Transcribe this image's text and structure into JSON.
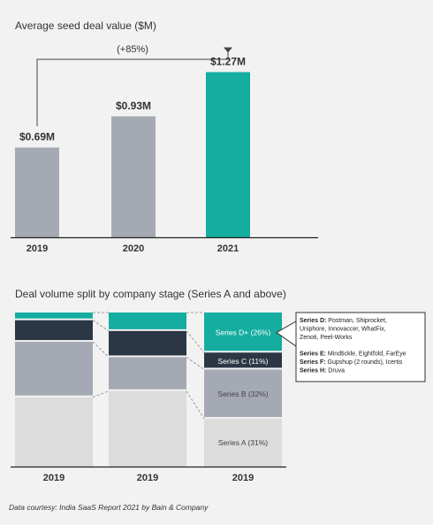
{
  "colors": {
    "bar_gray": "#a5a9b4",
    "bar_teal": "#14ada0",
    "series_a": "#dcdcdc",
    "series_b": "#a5a9b4",
    "series_c": "#2b3744",
    "series_d": "#14ada0",
    "axis": "#222222",
    "text": "#333333"
  },
  "chart_data": [
    {
      "type": "bar",
      "title": "Average seed deal value ($M)",
      "categories": [
        "2019",
        "2020",
        "2021"
      ],
      "values": [
        0.69,
        0.93,
        1.27
      ],
      "data_labels": [
        "$0.69M",
        "$0.93M",
        "$1.27M"
      ],
      "annotation": "(+85%)",
      "ylim": [
        0,
        1.45
      ]
    },
    {
      "type": "bar",
      "stacked": "100%",
      "title": "Deal volume split by company stage (Series A and above)",
      "categories": [
        "2019",
        "2019",
        "2019"
      ],
      "series": [
        {
          "name": "Series A",
          "values": [
            45,
            49,
            31
          ],
          "label": "Series A (31%)"
        },
        {
          "name": "Series B",
          "values": [
            36,
            22,
            32
          ],
          "label": "Series B (32%)"
        },
        {
          "name": "Series C",
          "values": [
            14,
            17,
            11
          ],
          "label": "Series C (11%)"
        },
        {
          "name": "Series D+",
          "values": [
            5,
            12,
            26
          ],
          "label": "Series D+ (26%)"
        }
      ],
      "ylim": [
        0,
        100
      ]
    }
  ],
  "callout": [
    {
      "label": "Series D:",
      "text": " Postman, Shiprocket,"
    },
    {
      "label": "",
      "text": "Uniphore, Innovaccer, WhatFix,"
    },
    {
      "label": "",
      "text": "Zenoti, Peel-Works"
    },
    {
      "label": "",
      "text": ""
    },
    {
      "label": "Series E:",
      "text": " Mindtickle, Eightfold, FarEye"
    },
    {
      "label": "Series F:",
      "text": " Gupshup (2 rounds), Icertis"
    },
    {
      "label": "Series H:",
      "text": " Druva"
    }
  ],
  "footer": "Data courtesy: India SaaS Report 2021 by Bain & Company"
}
